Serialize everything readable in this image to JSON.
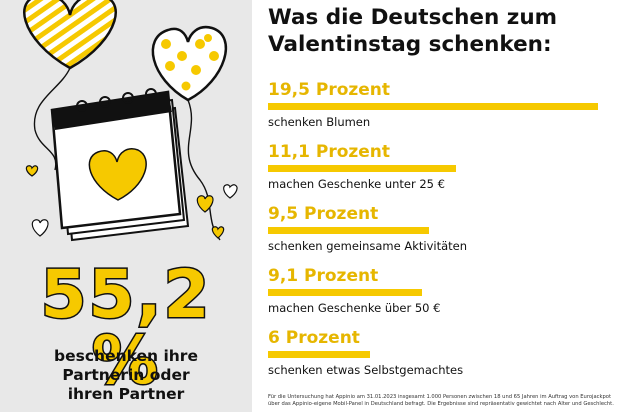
{
  "left_panel": {
    "share": "55,2 %",
    "caption_lines": [
      "beschenken ihre",
      "Partnerin oder",
      "ihren Partner"
    ]
  },
  "chart_data": {
    "type": "bar",
    "title_lines": [
      "Was die Deutschen zum",
      "Valentinstag schenken:"
    ],
    "categories": [
      "schenken Blumen",
      "machen Geschenke unter 25 €",
      "schenken gemeinsame Aktivitäten",
      "machen Geschenke über 50 €",
      "schenken etwas Selbstgemachtes"
    ],
    "value_labels": [
      "19,5 Prozent",
      "11,1 Prozent",
      "9,5 Prozent",
      "9,1 Prozent",
      "6 Prozent"
    ],
    "values": [
      19.5,
      11.1,
      9.5,
      9.1,
      6
    ],
    "unit": "Prozent",
    "orientation": "horizontal",
    "bar_color": "#f6c900",
    "value_color": "#e6b600"
  },
  "footnote": "Für die Untersuchung hat Appinio am 31.01.2023 insgesamt 1.000 Personen zwischen 18 und 65 Jahren im Auftrag von Eurojackpot über das Appinio-eigene Mobil-Panel in Deutschland befragt. Die Ergebnisse sind repräsentativ gewichtet nach Alter und Geschlecht.",
  "colors": {
    "accent": "#f6c900",
    "panel": "#e8e8e8",
    "ink": "#111111"
  },
  "icons": [
    "striped-heart-balloon-icon",
    "dotted-heart-balloon-icon",
    "calendar-heart-icon",
    "small-heart-icon"
  ]
}
